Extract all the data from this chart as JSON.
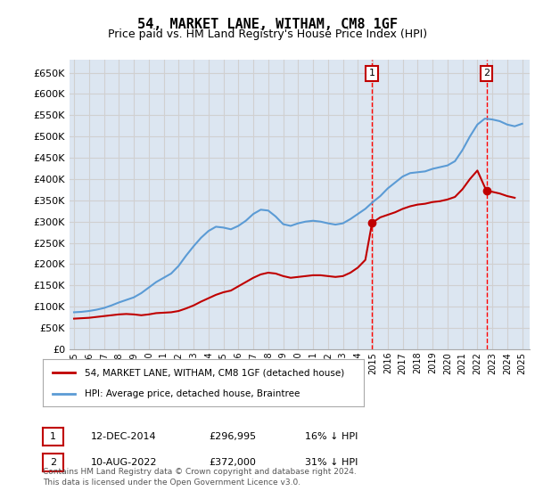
{
  "title": "54, MARKET LANE, WITHAM, CM8 1GF",
  "subtitle": "Price paid vs. HM Land Registry's House Price Index (HPI)",
  "ylabel_ticks": [
    "£0",
    "£50K",
    "£100K",
    "£150K",
    "£200K",
    "£250K",
    "£300K",
    "£350K",
    "£400K",
    "£450K",
    "£500K",
    "£550K",
    "£600K",
    "£650K"
  ],
  "ytick_values": [
    0,
    50000,
    100000,
    150000,
    200000,
    250000,
    300000,
    350000,
    400000,
    450000,
    500000,
    550000,
    600000,
    650000
  ],
  "ylim": [
    0,
    680000
  ],
  "xlim_start": 1995,
  "xlim_end": 2025.5,
  "xticks": [
    1995,
    1996,
    1997,
    1998,
    1999,
    2000,
    2001,
    2002,
    2003,
    2004,
    2005,
    2006,
    2007,
    2008,
    2009,
    2010,
    2011,
    2012,
    2013,
    2014,
    2015,
    2016,
    2017,
    2018,
    2019,
    2020,
    2021,
    2022,
    2023,
    2024,
    2025
  ],
  "hpi_color": "#5b9bd5",
  "price_color": "#c00000",
  "marker1_color": "#c00000",
  "marker2_color": "#c00000",
  "vline_color": "#ff0000",
  "grid_color": "#d0d0d0",
  "bg_color": "#dce6f1",
  "plot_bg": "#dce6f1",
  "legend_label_price": "54, MARKET LANE, WITHAM, CM8 1GF (detached house)",
  "legend_label_hpi": "HPI: Average price, detached house, Braintree",
  "annotation1_num": "1",
  "annotation1_date": "12-DEC-2014",
  "annotation1_price": "£296,995",
  "annotation1_hpi": "16% ↓ HPI",
  "annotation2_num": "2",
  "annotation2_date": "10-AUG-2022",
  "annotation2_price": "£372,000",
  "annotation2_hpi": "31% ↓ HPI",
  "footnote": "Contains HM Land Registry data © Crown copyright and database right 2024.\nThis data is licensed under the Open Government Licence v3.0.",
  "marker1_x": 2014.95,
  "marker1_y": 296995,
  "marker2_x": 2022.61,
  "marker2_y": 372000,
  "vline1_x": 2014.95,
  "vline2_x": 2022.61
}
